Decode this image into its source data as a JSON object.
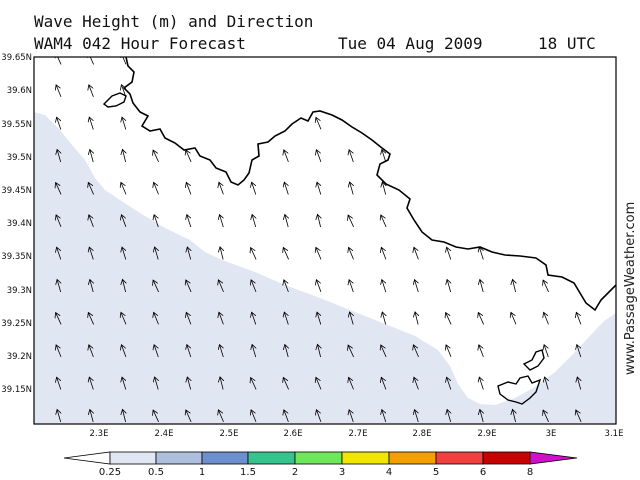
{
  "header": {
    "line1": "Wave Height (m) and Direction",
    "model_line": "WAM4 042 Hour Forecast",
    "date": "Tue 04 Aug 2009",
    "time": "18 UTC"
  },
  "watermark": "www.PassageWeather.com",
  "axes": {
    "lat_labels": [
      "39.65N",
      "39.6N",
      "39.55N",
      "39.5N",
      "39.45N",
      "39.4N",
      "39.35N",
      "39.3N",
      "39.25N",
      "39.2N",
      "39.15N"
    ],
    "lon_labels": [
      "2.3E",
      "2.4E",
      "2.5E",
      "2.6E",
      "2.7E",
      "2.8E",
      "2.9E",
      "3E",
      "3.1E"
    ]
  },
  "map": {
    "region": "Mallorca north coast",
    "sea_color": "#e0e7f3",
    "calm_sea_color": "#ffffff",
    "land_color": "#ffffff",
    "coast_color": "#000000",
    "wave_direction": "north-north-west"
  },
  "legend": {
    "labels": [
      "0.25",
      "0.5",
      "1",
      "1.5",
      "2",
      "3",
      "4",
      "5",
      "6",
      "8"
    ],
    "colors": [
      "#ffffff",
      "#dfe7f3",
      "#aebfdd",
      "#6d8fcf",
      "#37c38d",
      "#6ee85a",
      "#f1e600",
      "#f4a000",
      "#f04040",
      "#c80000",
      "#d010c8"
    ]
  }
}
